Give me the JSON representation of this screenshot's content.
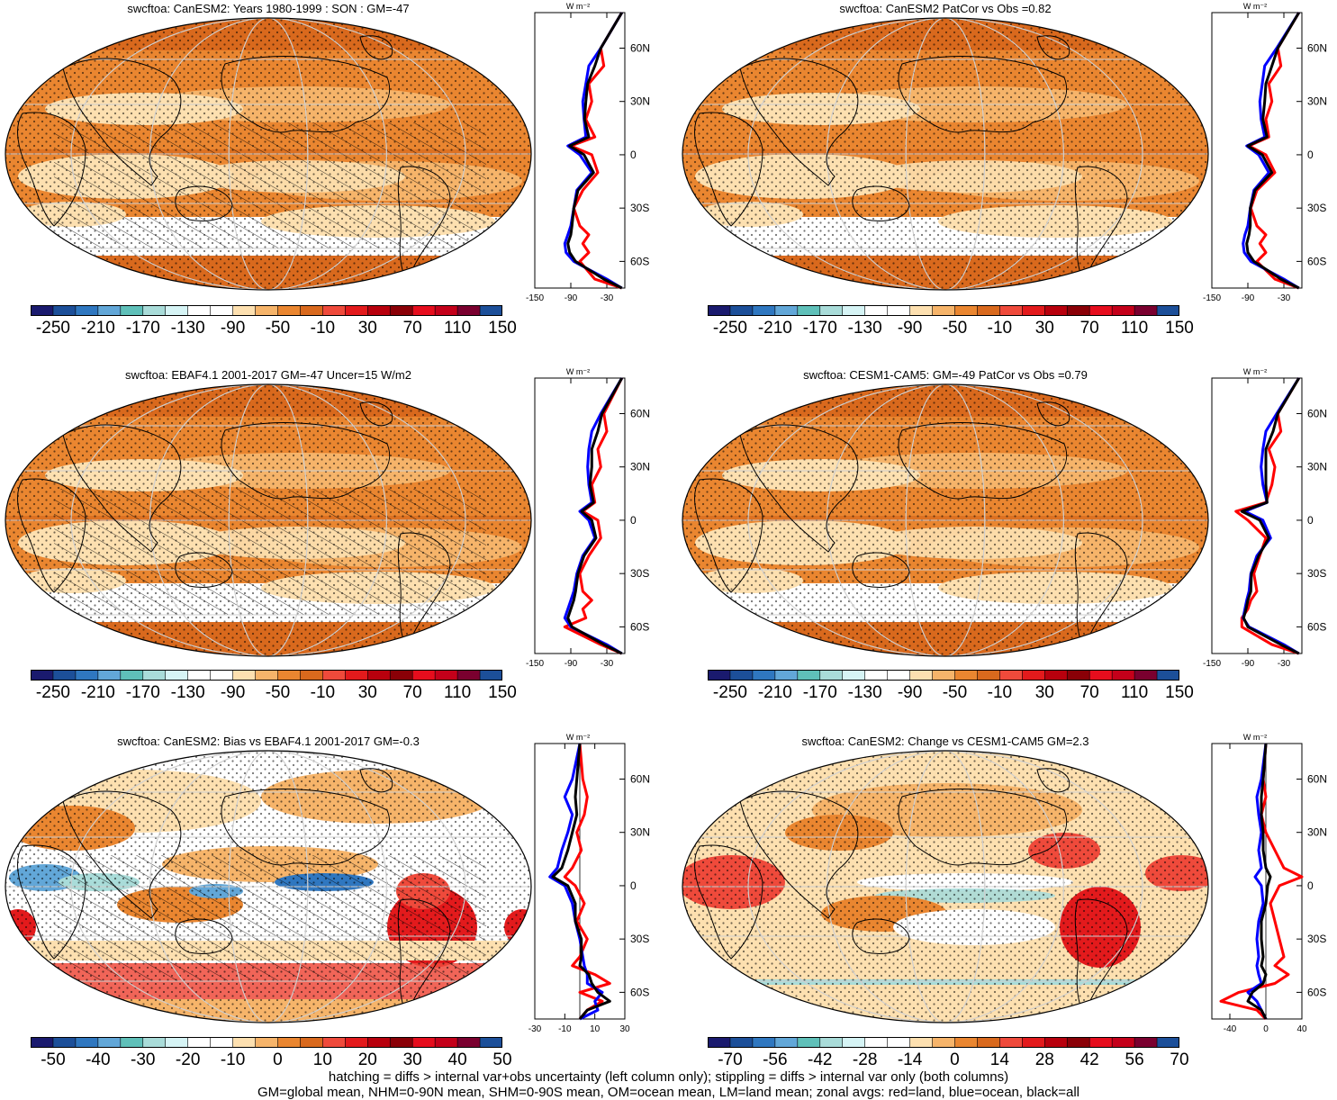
{
  "chart_data": [
    {
      "type": "heatmap",
      "title": "swcftoa: CanESM2: Years 1980-1999 : SON : GM=-47",
      "colorbar_ticks": [
        "-250",
        "-210",
        "-170",
        "-130",
        "-90",
        "-50",
        "-10",
        "30",
        "70",
        "110",
        "150"
      ],
      "zonal_xticks": [
        "-150",
        "-90",
        "-30"
      ],
      "zonal_unit": "W m⁻²",
      "zonal_lat_ticks": [
        "60N",
        "30N",
        "0",
        "30S",
        "60S"
      ],
      "hatching": true,
      "zonal_series": [
        {
          "color": "red",
          "lat": [
            80,
            60,
            50,
            40,
            30,
            20,
            10,
            5,
            0,
            -10,
            -20,
            -30,
            -40,
            -45,
            -50,
            -55,
            -60,
            -70,
            -80
          ],
          "values": [
            -5,
            -40,
            -35,
            -60,
            -55,
            -65,
            -50,
            -90,
            -55,
            -45,
            -70,
            -85,
            -75,
            -60,
            -70,
            -60,
            -75,
            -50,
            -5
          ]
        },
        {
          "color": "blue",
          "lat": [
            80,
            60,
            50,
            40,
            30,
            20,
            10,
            5,
            0,
            -10,
            -20,
            -30,
            -40,
            -45,
            -50,
            -55,
            -60,
            -70,
            -80
          ],
          "values": [
            -5,
            -40,
            -60,
            -65,
            -70,
            -68,
            -65,
            -95,
            -75,
            -55,
            -80,
            -85,
            -90,
            -95,
            -100,
            -98,
            -85,
            -30,
            -5
          ]
        },
        {
          "color": "black",
          "lat": [
            80,
            60,
            50,
            40,
            30,
            20,
            10,
            5,
            0,
            -10,
            -20,
            -30,
            -40,
            -45,
            -50,
            -55,
            -60,
            -70,
            -80
          ],
          "values": [
            -5,
            -40,
            -50,
            -62,
            -65,
            -67,
            -60,
            -92,
            -68,
            -52,
            -78,
            -85,
            -88,
            -90,
            -95,
            -92,
            -82,
            -35,
            -5
          ]
        }
      ]
    },
    {
      "type": "heatmap",
      "title": "swcftoa: CanESM2 PatCor vs Obs =0.82",
      "colorbar_ticks": [
        "-250",
        "-210",
        "-170",
        "-130",
        "-90",
        "-50",
        "-10",
        "30",
        "70",
        "110",
        "150"
      ],
      "zonal_xticks": [
        "-150",
        "-90",
        "-30"
      ],
      "zonal_unit": "W m⁻²",
      "zonal_lat_ticks": [
        "60N",
        "30N",
        "0",
        "30S",
        "60S"
      ],
      "hatching": false,
      "zonal_series": [
        {
          "color": "red",
          "lat": [
            80,
            60,
            50,
            40,
            30,
            20,
            10,
            5,
            0,
            -10,
            -20,
            -30,
            -40,
            -45,
            -50,
            -55,
            -60,
            -70,
            -80
          ],
          "values": [
            -5,
            -40,
            -35,
            -55,
            -50,
            -60,
            -55,
            -88,
            -60,
            -45,
            -75,
            -85,
            -75,
            -60,
            -70,
            -60,
            -75,
            -45,
            -5
          ]
        },
        {
          "color": "blue",
          "lat": [
            80,
            60,
            50,
            40,
            30,
            20,
            10,
            5,
            0,
            -10,
            -20,
            -30,
            -40,
            -45,
            -50,
            -55,
            -60,
            -70,
            -80
          ],
          "values": [
            -5,
            -42,
            -62,
            -66,
            -70,
            -68,
            -62,
            -92,
            -72,
            -55,
            -80,
            -86,
            -90,
            -95,
            -98,
            -96,
            -85,
            -30,
            -5
          ]
        },
        {
          "color": "black",
          "lat": [
            80,
            60,
            50,
            40,
            30,
            20,
            10,
            5,
            0,
            -10,
            -20,
            -30,
            -40,
            -45,
            -50,
            -55,
            -60,
            -70,
            -80
          ],
          "values": [
            -5,
            -40,
            -50,
            -60,
            -62,
            -65,
            -58,
            -90,
            -66,
            -50,
            -78,
            -86,
            -86,
            -88,
            -92,
            -90,
            -80,
            -35,
            -5
          ]
        }
      ]
    },
    {
      "type": "heatmap",
      "title": "swcftoa: EBAF4.1 2001-2017 GM=-47 Uncer=15 W/m2",
      "colorbar_ticks": [
        "-250",
        "-210",
        "-170",
        "-130",
        "-90",
        "-50",
        "-10",
        "30",
        "70",
        "110",
        "150"
      ],
      "zonal_xticks": [
        "-150",
        "-90",
        "-30"
      ],
      "zonal_unit": "W m⁻²",
      "zonal_lat_ticks": [
        "60N",
        "30N",
        "0",
        "30S",
        "60S"
      ],
      "hatching": true,
      "zonal_series": [
        {
          "color": "red",
          "lat": [
            80,
            60,
            50,
            40,
            30,
            20,
            10,
            5,
            0,
            -10,
            -20,
            -30,
            -40,
            -45,
            -50,
            -55,
            -60,
            -70,
            -80
          ],
          "values": [
            -5,
            -35,
            -30,
            -45,
            -40,
            -55,
            -50,
            -70,
            -45,
            -40,
            -60,
            -75,
            -70,
            -55,
            -70,
            -65,
            -100,
            -40,
            -5
          ]
        },
        {
          "color": "blue",
          "lat": [
            80,
            60,
            50,
            40,
            30,
            20,
            10,
            5,
            0,
            -10,
            -20,
            -30,
            -40,
            -45,
            -50,
            -55,
            -60,
            -70,
            -80
          ],
          "values": [
            -5,
            -40,
            -55,
            -60,
            -62,
            -60,
            -55,
            -75,
            -60,
            -50,
            -70,
            -80,
            -85,
            -90,
            -95,
            -100,
            -90,
            -30,
            -5
          ]
        },
        {
          "color": "black",
          "lat": [
            80,
            60,
            50,
            40,
            30,
            20,
            10,
            5,
            0,
            -10,
            -20,
            -30,
            -40,
            -45,
            -50,
            -55,
            -60,
            -70,
            -80
          ],
          "values": [
            -5,
            -38,
            -45,
            -55,
            -55,
            -58,
            -52,
            -72,
            -55,
            -48,
            -68,
            -78,
            -82,
            -85,
            -90,
            -95,
            -88,
            -35,
            -5
          ]
        }
      ]
    },
    {
      "type": "heatmap",
      "title": "swcftoa: CESM1-CAM5: GM=-49 PatCor vs Obs =0.79",
      "colorbar_ticks": [
        "-250",
        "-210",
        "-170",
        "-130",
        "-90",
        "-50",
        "-10",
        "30",
        "70",
        "110",
        "150"
      ],
      "zonal_xticks": [
        "-150",
        "-90",
        "-30"
      ],
      "zonal_unit": "W m⁻²",
      "zonal_lat_ticks": [
        "60N",
        "30N",
        "0",
        "30S",
        "60S"
      ],
      "hatching": false,
      "zonal_series": [
        {
          "color": "red",
          "lat": [
            80,
            60,
            50,
            40,
            30,
            20,
            10,
            5,
            0,
            -10,
            -20,
            -30,
            -40,
            -45,
            -50,
            -55,
            -60,
            -70,
            -80
          ],
          "values": [
            -5,
            -40,
            -35,
            -55,
            -45,
            -50,
            -60,
            -110,
            -90,
            -60,
            -70,
            -80,
            -75,
            -85,
            -90,
            -100,
            -100,
            -50,
            -5
          ]
        },
        {
          "color": "blue",
          "lat": [
            80,
            60,
            50,
            40,
            30,
            20,
            10,
            5,
            0,
            -10,
            -20,
            -30,
            -40,
            -45,
            -50,
            -55,
            -60,
            -70,
            -80
          ],
          "values": [
            -5,
            -42,
            -60,
            -65,
            -68,
            -65,
            -58,
            -95,
            -65,
            -52,
            -75,
            -85,
            -88,
            -92,
            -95,
            -98,
            -88,
            -30,
            -5
          ]
        },
        {
          "color": "black",
          "lat": [
            80,
            60,
            50,
            40,
            30,
            20,
            10,
            5,
            0,
            -10,
            -20,
            -30,
            -40,
            -45,
            -50,
            -55,
            -60,
            -70,
            -80
          ],
          "values": [
            -5,
            -40,
            -48,
            -60,
            -60,
            -60,
            -58,
            -100,
            -70,
            -55,
            -72,
            -84,
            -85,
            -90,
            -93,
            -97,
            -90,
            -35,
            -5
          ]
        }
      ]
    },
    {
      "type": "heatmap",
      "title": "swcftoa: CanESM2: Bias vs EBAF4.1 2001-2017  GM=-0.3",
      "colorbar_ticks": [
        "-50",
        "-40",
        "-30",
        "-20",
        "-10",
        "0",
        "10",
        "20",
        "30",
        "40",
        "50"
      ],
      "zonal_xticks": [
        "-30",
        "-10",
        "10",
        "30"
      ],
      "zonal_unit": "W m⁻²",
      "zonal_lat_ticks": [
        "60N",
        "30N",
        "0",
        "30S",
        "60S"
      ],
      "hatching": true,
      "zonal_series": [
        {
          "color": "red",
          "lat": [
            80,
            60,
            50,
            40,
            30,
            20,
            10,
            5,
            0,
            -10,
            -20,
            -30,
            -40,
            -45,
            -50,
            -55,
            -60,
            -65,
            -70,
            -80
          ],
          "values": [
            0,
            2,
            5,
            3,
            -2,
            1,
            -5,
            -10,
            -3,
            3,
            -2,
            5,
            0,
            -5,
            10,
            20,
            0,
            15,
            5,
            0
          ]
        },
        {
          "color": "blue",
          "lat": [
            80,
            60,
            50,
            40,
            30,
            20,
            10,
            5,
            0,
            -10,
            -20,
            -30,
            -40,
            -45,
            -50,
            -55,
            -60,
            -65,
            -70,
            -80
          ],
          "values": [
            0,
            -5,
            -10,
            -5,
            -8,
            -12,
            -15,
            -20,
            -10,
            -5,
            -3,
            0,
            2,
            3,
            5,
            5,
            15,
            10,
            12,
            0
          ]
        },
        {
          "color": "black",
          "lat": [
            80,
            60,
            50,
            40,
            30,
            20,
            10,
            5,
            0,
            -10,
            -20,
            -30,
            -40,
            -45,
            -50,
            -55,
            -60,
            -65,
            -70,
            -80
          ],
          "values": [
            0,
            -2,
            -3,
            -2,
            -5,
            -8,
            -12,
            -18,
            -8,
            -3,
            -3,
            1,
            1,
            0,
            6,
            8,
            12,
            20,
            5,
            0
          ]
        }
      ]
    },
    {
      "type": "heatmap",
      "title": "swcftoa: CanESM2: Change vs CESM1-CAM5 GM=2.3",
      "colorbar_ticks": [
        "-70",
        "-56",
        "-42",
        "-28",
        "-14",
        "0",
        "14",
        "28",
        "42",
        "56",
        "70"
      ],
      "zonal_xticks": [
        "-40",
        "0",
        "40"
      ],
      "zonal_unit": "W m⁻²",
      "zonal_lat_ticks": [
        "60N",
        "30N",
        "0",
        "30S",
        "60S"
      ],
      "hatching": false,
      "zonal_series": [
        {
          "color": "red",
          "lat": [
            80,
            60,
            50,
            40,
            30,
            20,
            10,
            5,
            0,
            -10,
            -20,
            -30,
            -40,
            -45,
            -50,
            -55,
            -60,
            -65,
            -70,
            -80
          ],
          "values": [
            0,
            -3,
            0,
            -5,
            0,
            10,
            20,
            40,
            15,
            5,
            10,
            15,
            20,
            10,
            25,
            10,
            -30,
            -50,
            -10,
            0
          ]
        },
        {
          "color": "blue",
          "lat": [
            80,
            60,
            50,
            40,
            30,
            20,
            10,
            5,
            0,
            -10,
            -20,
            -30,
            -40,
            -45,
            -50,
            -55,
            -60,
            -65,
            -70,
            -80
          ],
          "values": [
            0,
            -5,
            -10,
            -8,
            -5,
            -8,
            -5,
            -12,
            -5,
            -3,
            -8,
            -10,
            -8,
            -10,
            -8,
            -5,
            -20,
            -10,
            -5,
            0
          ]
        },
        {
          "color": "black",
          "lat": [
            80,
            60,
            50,
            40,
            30,
            20,
            10,
            5,
            0,
            -10,
            -20,
            -30,
            -40,
            -45,
            -50,
            -55,
            -60,
            -65,
            -70,
            -80
          ],
          "values": [
            0,
            -3,
            -5,
            -5,
            -3,
            -3,
            0,
            5,
            2,
            0,
            -5,
            -5,
            -3,
            -5,
            0,
            -3,
            -15,
            -20,
            -5,
            0
          ]
        }
      ]
    }
  ],
  "colors": {
    "diverging_palette": [
      "#1a1a6e",
      "#1c4f99",
      "#2f77c0",
      "#62a7d8",
      "#5fc0b9",
      "#a9dcd9",
      "#d6f4f5",
      "#ffffff",
      "#ffffff",
      "#fde0b0",
      "#f6b46a",
      "#ea8630",
      "#d9691d",
      "#ef4a3b",
      "#e31a1c",
      "#b8000d",
      "#8a0007",
      "#e60d1d",
      "#c4001a",
      "#7a002f",
      "#1c4f99"
    ],
    "land_line": "#000000"
  },
  "footer": {
    "line1": "hatching = diffs > internal var+obs uncertainty (left column only); stippling = diffs > internal var only (both columns)",
    "line2": "GM=global mean, NHM=0-90N mean, SHM=0-90S mean, OM=ocean mean, LM=land mean; zonal avgs: red=land, blue=ocean, black=all"
  }
}
